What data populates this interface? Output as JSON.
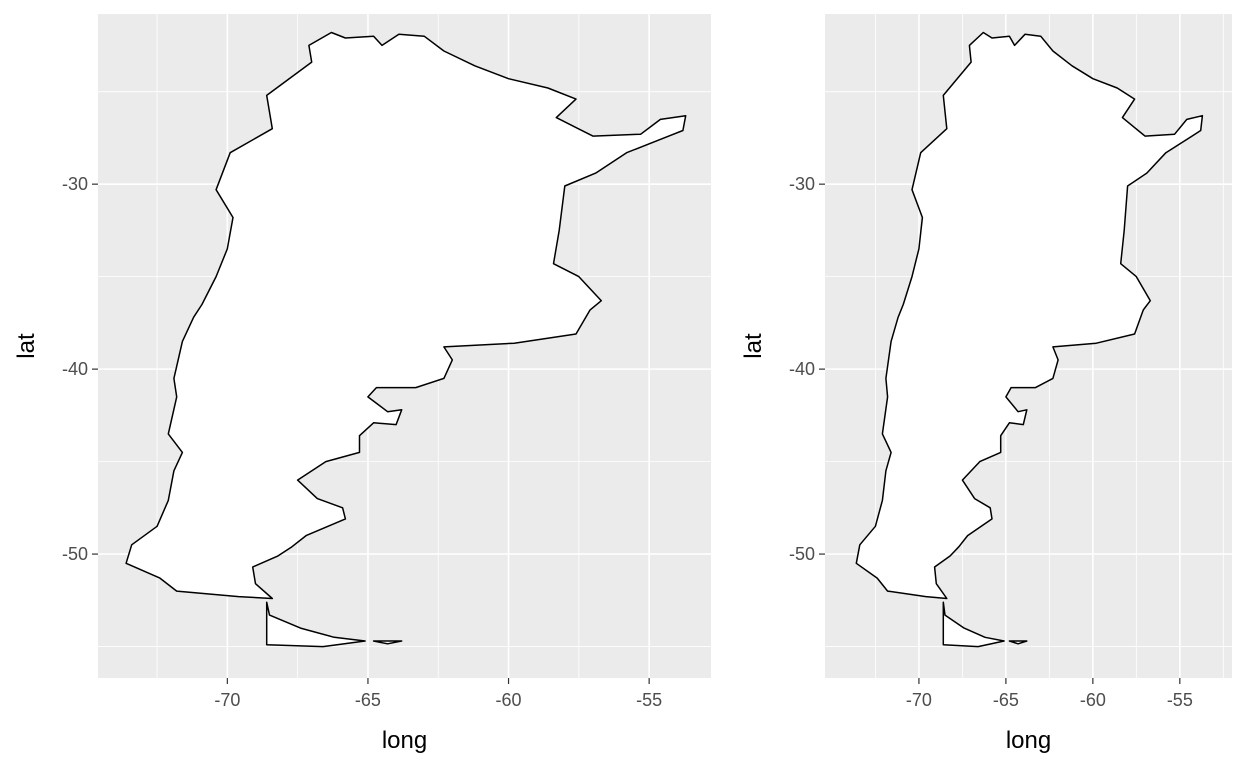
{
  "chart_data": [
    {
      "type": "map",
      "xlabel": "long",
      "ylabel": "lat",
      "xlim": [
        -74.6,
        -52.8
      ],
      "ylim": [
        -56.7,
        -20.8
      ],
      "x_ticks": [
        -70,
        -65,
        -60,
        -55
      ],
      "x_tick_labels": [
        "-70",
        "-65",
        "-60",
        "-55"
      ],
      "y_ticks": [
        -30,
        -40,
        -50
      ],
      "y_tick_labels": [
        "-30",
        "-40",
        "-50"
      ],
      "grid": true,
      "region_outlines": [
        {
          "name": "mainland",
          "points": [
            [
              -66.3,
              -21.8
            ],
            [
              -65.8,
              -22.1
            ],
            [
              -64.8,
              -22.0
            ],
            [
              -64.5,
              -22.5
            ],
            [
              -63.9,
              -21.9
            ],
            [
              -63.0,
              -22.0
            ],
            [
              -62.3,
              -22.8
            ],
            [
              -61.2,
              -23.6
            ],
            [
              -60.0,
              -24.3
            ],
            [
              -58.6,
              -24.8
            ],
            [
              -57.6,
              -25.4
            ],
            [
              -58.3,
              -26.4
            ],
            [
              -57.0,
              -27.4
            ],
            [
              -55.3,
              -27.3
            ],
            [
              -54.6,
              -26.5
            ],
            [
              -53.7,
              -26.3
            ],
            [
              -53.8,
              -27.1
            ],
            [
              -54.3,
              -27.4
            ],
            [
              -55.8,
              -28.3
            ],
            [
              -56.9,
              -29.4
            ],
            [
              -58.0,
              -30.1
            ],
            [
              -58.2,
              -32.5
            ],
            [
              -58.4,
              -34.3
            ],
            [
              -57.5,
              -35.0
            ],
            [
              -56.7,
              -36.3
            ],
            [
              -57.1,
              -36.8
            ],
            [
              -57.6,
              -38.1
            ],
            [
              -59.8,
              -38.6
            ],
            [
              -62.3,
              -38.8
            ],
            [
              -62.0,
              -39.5
            ],
            [
              -62.3,
              -40.5
            ],
            [
              -63.3,
              -41.0
            ],
            [
              -64.7,
              -41.0
            ],
            [
              -65.0,
              -41.5
            ],
            [
              -64.3,
              -42.3
            ],
            [
              -63.8,
              -42.2
            ],
            [
              -64.0,
              -43.0
            ],
            [
              -64.8,
              -42.9
            ],
            [
              -65.3,
              -43.6
            ],
            [
              -65.3,
              -44.5
            ],
            [
              -66.5,
              -45.0
            ],
            [
              -67.5,
              -46.0
            ],
            [
              -66.8,
              -47.0
            ],
            [
              -65.9,
              -47.5
            ],
            [
              -65.8,
              -48.1
            ],
            [
              -67.2,
              -49.0
            ],
            [
              -67.7,
              -49.6
            ],
            [
              -68.2,
              -50.1
            ],
            [
              -69.1,
              -50.7
            ],
            [
              -69.0,
              -51.6
            ],
            [
              -68.4,
              -52.4
            ],
            [
              -69.6,
              -52.3
            ],
            [
              -71.8,
              -52.0
            ],
            [
              -72.4,
              -51.3
            ],
            [
              -73.6,
              -50.5
            ],
            [
              -73.4,
              -49.5
            ],
            [
              -72.5,
              -48.5
            ],
            [
              -72.1,
              -47.1
            ],
            [
              -71.9,
              -45.5
            ],
            [
              -71.6,
              -44.5
            ],
            [
              -72.1,
              -43.5
            ],
            [
              -71.8,
              -41.5
            ],
            [
              -71.9,
              -40.5
            ],
            [
              -71.6,
              -38.5
            ],
            [
              -71.2,
              -37.2
            ],
            [
              -70.9,
              -36.5
            ],
            [
              -70.4,
              -35.0
            ],
            [
              -70.0,
              -33.5
            ],
            [
              -69.8,
              -31.8
            ],
            [
              -70.4,
              -30.3
            ],
            [
              -69.9,
              -28.3
            ],
            [
              -68.4,
              -27.0
            ],
            [
              -68.6,
              -25.2
            ],
            [
              -67.0,
              -23.4
            ],
            [
              -67.1,
              -22.5
            ],
            [
              -66.3,
              -21.8
            ]
          ]
        },
        {
          "name": "tierra-del-fuego",
          "points": [
            [
              -68.6,
              -52.6
            ],
            [
              -68.5,
              -53.3
            ],
            [
              -67.4,
              -54.0
            ],
            [
              -66.2,
              -54.5
            ],
            [
              -65.1,
              -54.7
            ],
            [
              -66.6,
              -55.0
            ],
            [
              -68.6,
              -54.9
            ],
            [
              -68.6,
              -52.6
            ]
          ]
        },
        {
          "name": "isla-de-los-estados",
          "points": [
            [
              -64.8,
              -54.7
            ],
            [
              -63.8,
              -54.7
            ],
            [
              -64.3,
              -54.85
            ],
            [
              -64.8,
              -54.7
            ]
          ]
        }
      ]
    },
    {
      "type": "map",
      "xlabel": "long",
      "ylabel": "lat",
      "xlim": [
        -75.4,
        -52.0
      ],
      "ylim": [
        -56.7,
        -20.8
      ],
      "x_ticks": [
        -70,
        -65,
        -60,
        -55
      ],
      "x_tick_labels": [
        "-70",
        "-65",
        "-60",
        "-55"
      ],
      "y_ticks": [
        -30,
        -40,
        -50
      ],
      "y_tick_labels": [
        "-30",
        "-40",
        "-50"
      ],
      "grid": true,
      "coord_fixed": true,
      "region_outlines": "same as first panel"
    }
  ]
}
